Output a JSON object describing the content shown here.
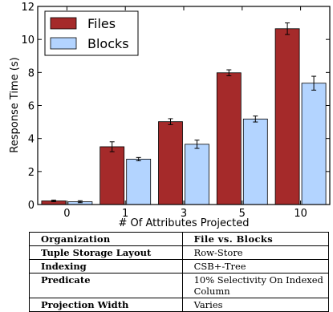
{
  "chart_data": {
    "type": "bar",
    "categories": [
      "0",
      "1",
      "3",
      "5",
      "10"
    ],
    "series": [
      {
        "name": "Files",
        "color": "#a52a2a",
        "values": [
          0.22,
          3.5,
          5.02,
          7.98,
          10.65
        ],
        "errors": [
          0.05,
          0.3,
          0.18,
          0.18,
          0.35
        ]
      },
      {
        "name": "Blocks",
        "color": "#b3d4ff",
        "values": [
          0.17,
          2.75,
          3.65,
          5.18,
          7.35
        ],
        "errors": [
          0.06,
          0.1,
          0.25,
          0.18,
          0.42
        ]
      }
    ],
    "xlabel": "# Of Attributes Projected",
    "ylabel": "Response Time (s)",
    "ylim": [
      0,
      12
    ],
    "yticks": [
      "0",
      "2",
      "4",
      "6",
      "8",
      "10",
      "12"
    ],
    "legend_position": "top-left",
    "grid": false
  },
  "table": {
    "header": [
      "Organization",
      "File vs. Blocks"
    ],
    "rows": [
      [
        "Tuple Storage Layout",
        "Row-Store"
      ],
      [
        "Indexing",
        "CSB+-Tree"
      ],
      [
        "Predicate",
        "10% Selectivity On Indexed Column"
      ],
      [
        "Projection Width",
        "Varies"
      ]
    ]
  }
}
